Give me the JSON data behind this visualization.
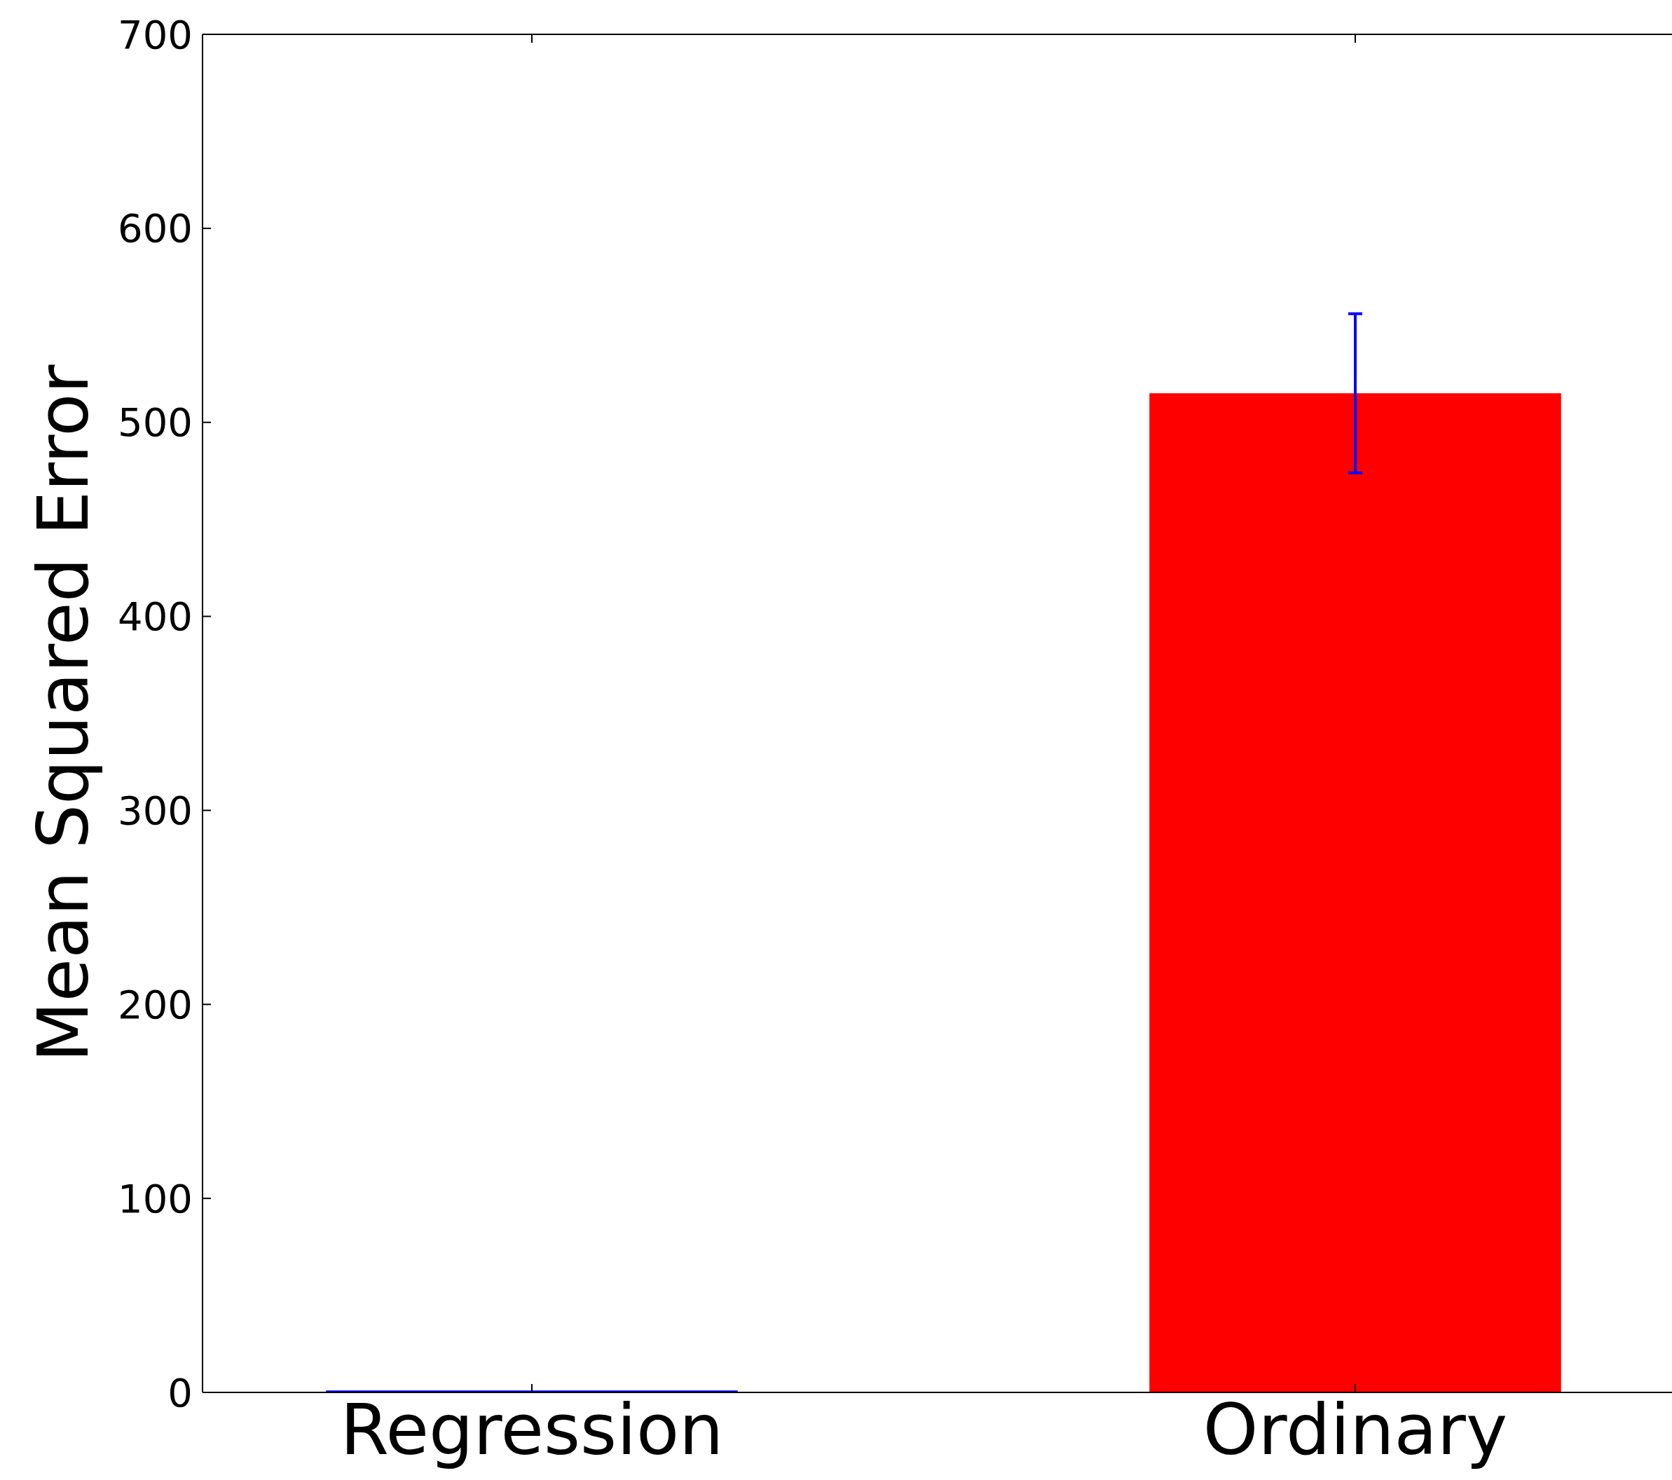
{
  "chart_data": {
    "type": "bar",
    "ylabel": "Mean Squared Error",
    "categories": [
      "Regression",
      "Ordinary"
    ],
    "values": [
      1,
      515
    ],
    "colors": [
      "#0000ff",
      "#ff0000"
    ],
    "errors": [
      null,
      41
    ],
    "ylim": [
      0,
      700
    ],
    "yticks": [
      0,
      100,
      200,
      300,
      400,
      500,
      600,
      700
    ],
    "grid": false
  }
}
